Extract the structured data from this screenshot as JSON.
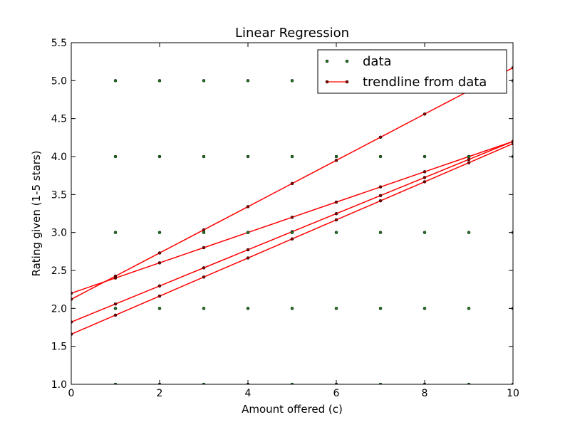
{
  "chart_data": {
    "type": "scatter",
    "title": "Linear Regression",
    "xlabel": "Amount offered (c)",
    "ylabel": "Rating given (1-5 stars)",
    "xlim": [
      0,
      10
    ],
    "ylim": [
      1.0,
      5.5
    ],
    "xticks": [
      0,
      2,
      4,
      6,
      8,
      10
    ],
    "xtick_labels": [
      "0",
      "2",
      "4",
      "6",
      "8",
      "10"
    ],
    "yticks": [
      1.0,
      1.5,
      2.0,
      2.5,
      3.0,
      3.5,
      4.0,
      4.5,
      5.0,
      5.5
    ],
    "ytick_labels": [
      "1.0",
      "1.5",
      "2.0",
      "2.5",
      "3.0",
      "3.5",
      "4.0",
      "4.5",
      "5.0",
      "5.5"
    ],
    "grid": false,
    "legend_position": "top-right",
    "series": [
      {
        "name": "data",
        "kind": "points",
        "color": "#1f7a1f",
        "points": [
          [
            1,
            1
          ],
          [
            1,
            2
          ],
          [
            1,
            3
          ],
          [
            1,
            4
          ],
          [
            1,
            5
          ],
          [
            2,
            1
          ],
          [
            2,
            2
          ],
          [
            2,
            3
          ],
          [
            2,
            4
          ],
          [
            2,
            5
          ],
          [
            3,
            1
          ],
          [
            3,
            2
          ],
          [
            3,
            3
          ],
          [
            3,
            4
          ],
          [
            3,
            5
          ],
          [
            4,
            1
          ],
          [
            4,
            2
          ],
          [
            4,
            3
          ],
          [
            4,
            4
          ],
          [
            4,
            5
          ],
          [
            5,
            1
          ],
          [
            5,
            2
          ],
          [
            5,
            3
          ],
          [
            5,
            4
          ],
          [
            5,
            5
          ],
          [
            6,
            1
          ],
          [
            6,
            2
          ],
          [
            6,
            3
          ],
          [
            6,
            4
          ],
          [
            6,
            5
          ],
          [
            7,
            1
          ],
          [
            7,
            2
          ],
          [
            7,
            3
          ],
          [
            7,
            4
          ],
          [
            7,
            5
          ],
          [
            8,
            1
          ],
          [
            8,
            2
          ],
          [
            8,
            3
          ],
          [
            8,
            4
          ],
          [
            8,
            5
          ],
          [
            9,
            1
          ],
          [
            9,
            2
          ],
          [
            9,
            3
          ],
          [
            9,
            4
          ],
          [
            9,
            5
          ],
          [
            10,
            1
          ],
          [
            10,
            2
          ],
          [
            10,
            3
          ],
          [
            10,
            4
          ],
          [
            10,
            5
          ]
        ]
      },
      {
        "name": "trendline from data",
        "kind": "lines",
        "color": "#ff0000",
        "marker_color": "#8b0000",
        "lines": [
          {
            "x": [
              0,
              1,
              2,
              3,
              4,
              5,
              6,
              7,
              8,
              9,
              10
            ],
            "y": [
              2.12,
              2.425,
              2.73,
              3.035,
              3.34,
              3.645,
              3.95,
              4.255,
              4.56,
              4.865,
              5.17
            ]
          },
          {
            "x": [
              0,
              1,
              2,
              3,
              4,
              5,
              6,
              7,
              8,
              9,
              10
            ],
            "y": [
              2.2,
              2.4,
              2.6,
              2.8,
              3.0,
              3.2,
              3.4,
              3.6,
              3.8,
              4.0,
              4.2
            ]
          },
          {
            "x": [
              0,
              1,
              2,
              3,
              4,
              5,
              6,
              7,
              8,
              9,
              10
            ],
            "y": [
              1.82,
              2.058,
              2.296,
              2.534,
              2.772,
              3.01,
              3.248,
              3.486,
              3.724,
              3.962,
              4.2
            ]
          },
          {
            "x": [
              0,
              1,
              2,
              3,
              4,
              5,
              6,
              7,
              8,
              9,
              10
            ],
            "y": [
              1.66,
              1.911,
              2.162,
              2.413,
              2.664,
              2.915,
              3.166,
              3.417,
              3.668,
              3.919,
              4.17
            ]
          }
        ]
      }
    ]
  }
}
